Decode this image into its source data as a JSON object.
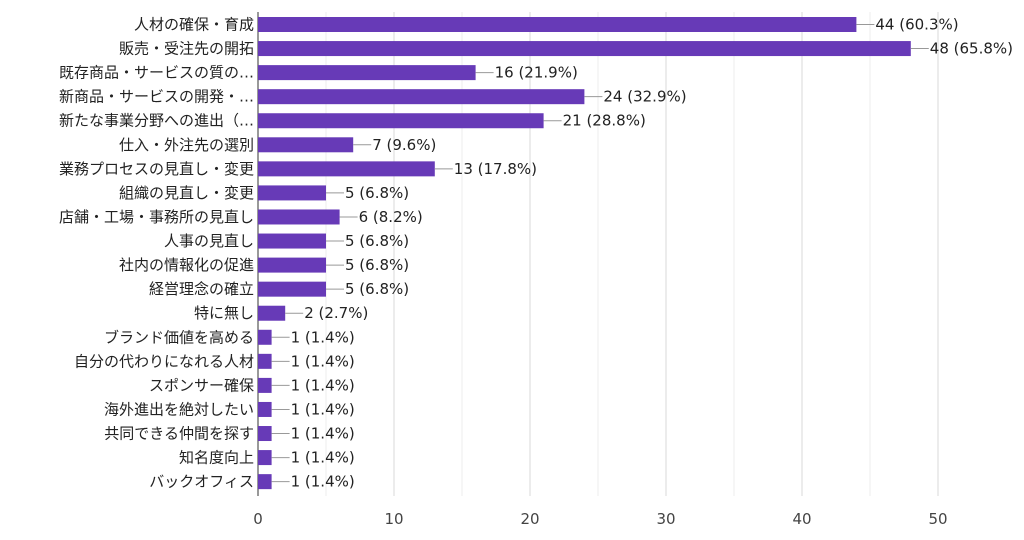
{
  "chart_data": {
    "type": "bar",
    "orientation": "horizontal",
    "categories": [
      "人材の確保・育成",
      "販売・受注先の開拓",
      "既存商品・サービスの質の…",
      "新商品・サービスの開発・…",
      "新たな事業分野への進出（…",
      "仕入・外注先の選別",
      "業務プロセスの見直し・変更",
      "組織の見直し・変更",
      "店舗・工場・事務所の見直し",
      "人事の見直し",
      "社内の情報化の促進",
      "経営理念の確立",
      "特に無し",
      "ブランド価値を高める",
      "自分の代わりになれる人材",
      "スポンサー確保",
      "海外進出を絶対したい",
      "共同できる仲間を探す",
      "知名度向上",
      "バックオフィス"
    ],
    "values": [
      44,
      48,
      16,
      24,
      21,
      7,
      13,
      5,
      6,
      5,
      5,
      5,
      2,
      1,
      1,
      1,
      1,
      1,
      1,
      1
    ],
    "value_labels": [
      "44 (60.3%)",
      "48 (65.8%)",
      "16 (21.9%)",
      "24 (32.9%)",
      "21 (28.8%)",
      "7 (9.6%)",
      "13 (17.8%)",
      "5 (6.8%)",
      "6 (8.2%)",
      "5 (6.8%)",
      "5 (6.8%)",
      "5 (6.8%)",
      "2 (2.7%)",
      "1 (1.4%)",
      "1 (1.4%)",
      "1 (1.4%)",
      "1 (1.4%)",
      "1 (1.4%)",
      "1 (1.4%)",
      "1 (1.4%)"
    ],
    "xlim": [
      0,
      50
    ],
    "x_ticks": [
      0,
      10,
      20,
      30,
      40,
      50
    ],
    "x_tick_labels": [
      "0",
      "10",
      "20",
      "30",
      "40",
      "50"
    ],
    "grid": true,
    "bar_color": "#673ab7",
    "title": "",
    "xlabel": "",
    "ylabel": ""
  }
}
